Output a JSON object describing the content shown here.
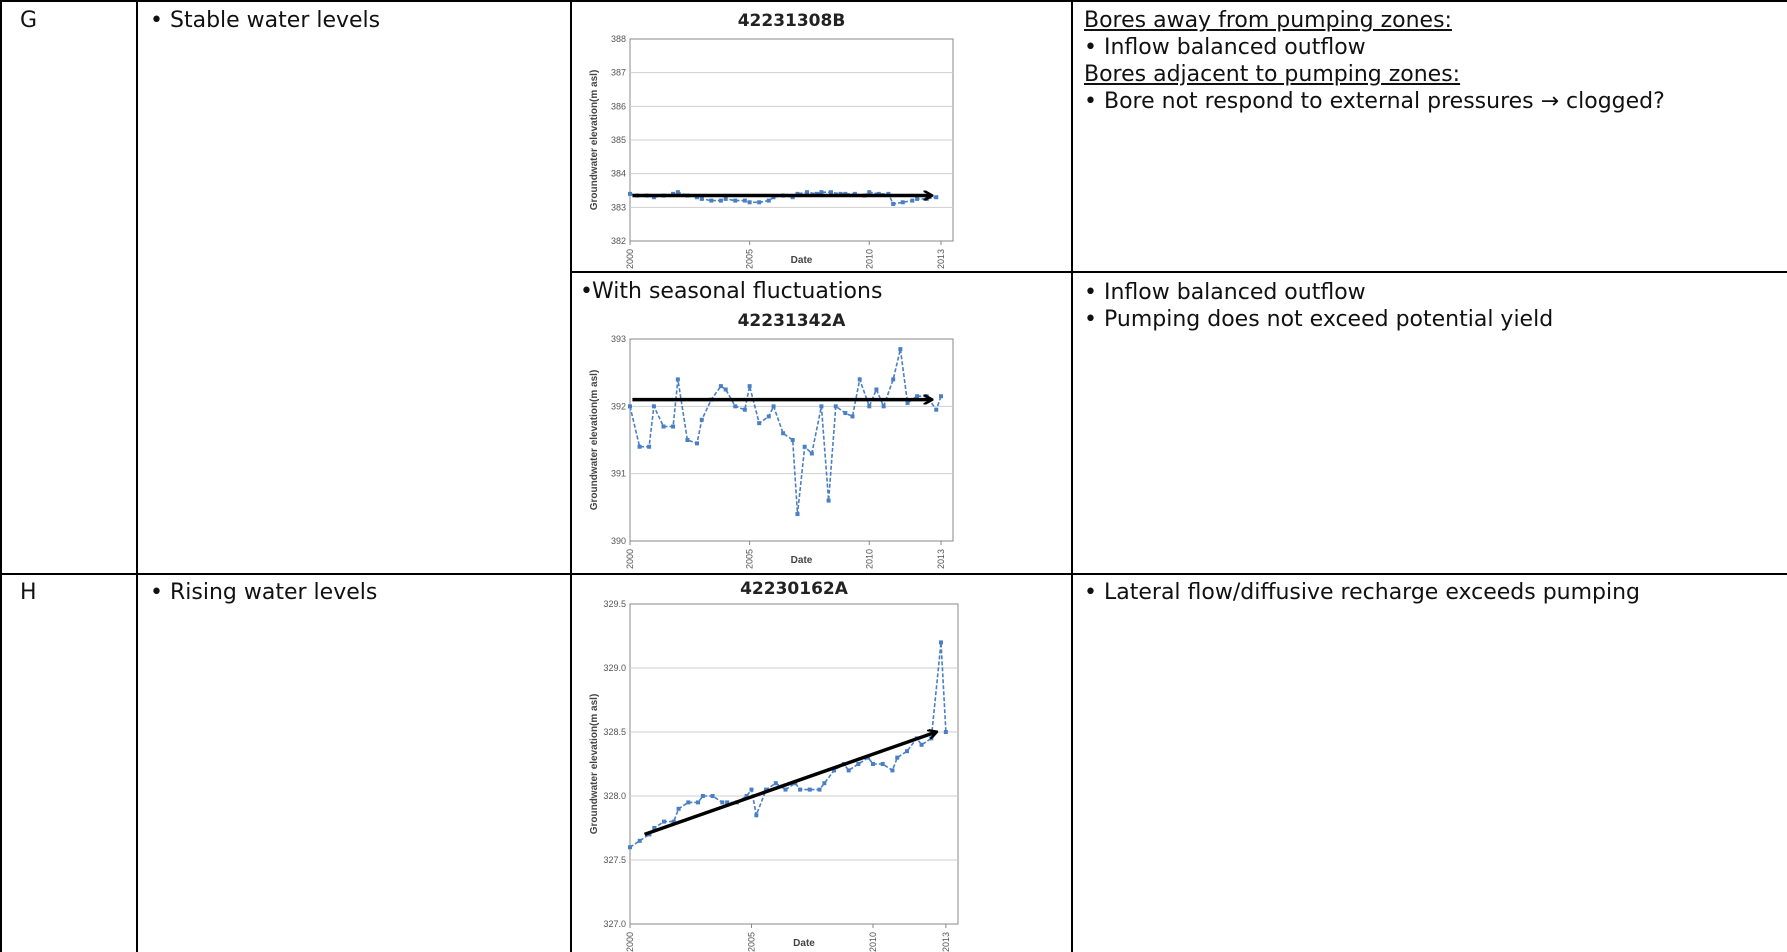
{
  "rows": [
    {
      "id": "G",
      "description": "Stable water levels",
      "panels": [
        {
          "note": "",
          "interpretation": {
            "lines": [
              {
                "text": "Bores away from pumping zones:",
                "underline": true,
                "bullet": false
              },
              {
                "text": "Inflow balanced outflow",
                "underline": false,
                "bullet": true
              },
              {
                "text": "Bores adjacent to pumping zones:",
                "underline": true,
                "bullet": false
              },
              {
                "text": "Bore not respond to external pressures → clogged?",
                "underline": false,
                "bullet": true,
                "justify": true
              }
            ]
          }
        },
        {
          "note": "With seasonal fluctuations",
          "interpretation": {
            "lines": [
              {
                "text": "Inflow balanced outflow",
                "underline": false,
                "bullet": true
              },
              {
                "text": "Pumping does not exceed potential yield",
                "underline": false,
                "bullet": true,
                "justify": true
              }
            ]
          }
        }
      ]
    },
    {
      "id": "H",
      "description": "Rising water levels",
      "panels": [
        {
          "note": "",
          "interpretation": {
            "lines": [
              {
                "text": "Lateral flow/diffusive recharge exceeds pumping",
                "underline": false,
                "bullet": true,
                "justify": true
              }
            ]
          }
        }
      ]
    }
  ],
  "chart_data": [
    {
      "type": "line",
      "title": "42231308B",
      "xlabel": "Date",
      "ylabel": "Groundwater elevation(m asl)",
      "xlim": [
        2000,
        2013.5
      ],
      "ylim": [
        382,
        388
      ],
      "yticks": [
        "382",
        "383",
        "384",
        "385",
        "386",
        "387",
        "388"
      ],
      "xticks": [
        "2000",
        "2005",
        "2010",
        "2013"
      ],
      "x": [
        2000.0,
        2000.3,
        2000.7,
        2001.0,
        2001.4,
        2001.8,
        2002.0,
        2002.4,
        2002.8,
        2003.0,
        2003.4,
        2003.8,
        2004.0,
        2004.4,
        2004.8,
        2005.0,
        2005.4,
        2005.8,
        2006.0,
        2006.4,
        2006.8,
        2007.0,
        2007.4,
        2007.8,
        2008.0,
        2008.4,
        2008.8,
        2009.0,
        2009.4,
        2009.8,
        2010.0,
        2010.4,
        2010.8,
        2011.0,
        2011.4,
        2011.8,
        2012.0,
        2012.4,
        2012.8
      ],
      "y": [
        383.4,
        383.35,
        383.35,
        383.3,
        383.35,
        383.4,
        383.45,
        383.35,
        383.3,
        383.25,
        383.2,
        383.2,
        383.25,
        383.2,
        383.2,
        383.15,
        383.15,
        383.2,
        383.3,
        383.35,
        383.3,
        383.4,
        383.45,
        383.4,
        383.45,
        383.45,
        383.4,
        383.4,
        383.4,
        383.35,
        383.45,
        383.4,
        383.4,
        383.1,
        383.15,
        383.2,
        383.25,
        383.25,
        383.3
      ],
      "trend": {
        "x": [
          2000.1,
          2012.6
        ],
        "y": [
          383.35,
          383.35
        ]
      },
      "color": "#4a7fc4"
    },
    {
      "type": "line",
      "title": "42231342A",
      "xlabel": "Date",
      "ylabel": "Groundwater elevation(m asl)",
      "xlim": [
        2000,
        2013.5
      ],
      "ylim": [
        390,
        393
      ],
      "yticks": [
        "390",
        "391",
        "392",
        "393"
      ],
      "xticks": [
        "2000",
        "2005",
        "2010",
        "2013"
      ],
      "x": [
        2000.0,
        2000.4,
        2000.8,
        2001.0,
        2001.4,
        2001.8,
        2002.0,
        2002.4,
        2002.8,
        2003.0,
        2003.4,
        2003.8,
        2004.0,
        2004.4,
        2004.8,
        2005.0,
        2005.4,
        2005.8,
        2006.0,
        2006.4,
        2006.8,
        2007.0,
        2007.3,
        2007.6,
        2008.0,
        2008.3,
        2008.6,
        2009.0,
        2009.3,
        2009.6,
        2010.0,
        2010.3,
        2010.6,
        2011.0,
        2011.3,
        2011.6,
        2012.0,
        2012.4,
        2012.8,
        2013.0
      ],
      "y": [
        392.0,
        391.4,
        391.4,
        392.0,
        391.7,
        391.7,
        392.4,
        391.5,
        391.45,
        391.8,
        392.1,
        392.3,
        392.25,
        392.0,
        391.95,
        392.3,
        391.75,
        391.85,
        392.0,
        391.6,
        391.5,
        390.4,
        391.4,
        391.3,
        392.0,
        390.6,
        392.0,
        391.9,
        391.85,
        392.4,
        392.0,
        392.25,
        392.0,
        392.4,
        392.85,
        392.05,
        392.15,
        392.15,
        391.95,
        392.15
      ],
      "trend": {
        "x": [
          2000.1,
          2012.6
        ],
        "y": [
          392.1,
          392.1
        ]
      },
      "color": "#4a7fc4"
    },
    {
      "type": "line",
      "title": "42230162A",
      "xlabel": "Date",
      "ylabel": "Groundwater elevation(m asl)",
      "xlim": [
        2000,
        2013.5
      ],
      "ylim": [
        327.0,
        329.5
      ],
      "yticks": [
        "327.0",
        "327.5",
        "328.0",
        "328.5",
        "329.0",
        "329.5"
      ],
      "xticks": [
        "2000",
        "2005",
        "2010",
        "2013"
      ],
      "x": [
        2000.0,
        2000.4,
        2000.8,
        2001.0,
        2001.4,
        2001.8,
        2002.0,
        2002.4,
        2002.8,
        2003.0,
        2003.4,
        2003.8,
        2004.0,
        2004.4,
        2004.8,
        2005.0,
        2005.2,
        2005.6,
        2006.0,
        2006.4,
        2006.8,
        2007.0,
        2007.4,
        2007.8,
        2008.0,
        2008.4,
        2008.8,
        2009.0,
        2009.4,
        2009.8,
        2010.0,
        2010.4,
        2010.8,
        2011.0,
        2011.4,
        2011.8,
        2012.0,
        2012.4,
        2012.8,
        2013.0
      ],
      "y": [
        327.6,
        327.65,
        327.7,
        327.75,
        327.8,
        327.8,
        327.9,
        327.95,
        327.95,
        328.0,
        328.0,
        327.95,
        327.95,
        327.95,
        328.0,
        328.05,
        327.85,
        328.05,
        328.1,
        328.05,
        328.1,
        328.05,
        328.05,
        328.05,
        328.1,
        328.2,
        328.25,
        328.2,
        328.25,
        328.3,
        328.25,
        328.25,
        328.2,
        328.3,
        328.35,
        328.45,
        328.4,
        328.45,
        329.2,
        328.5
      ],
      "trend": {
        "x": [
          2000.6,
          2012.6
        ],
        "y": [
          327.7,
          328.5
        ]
      },
      "color": "#4a7fc4"
    }
  ]
}
